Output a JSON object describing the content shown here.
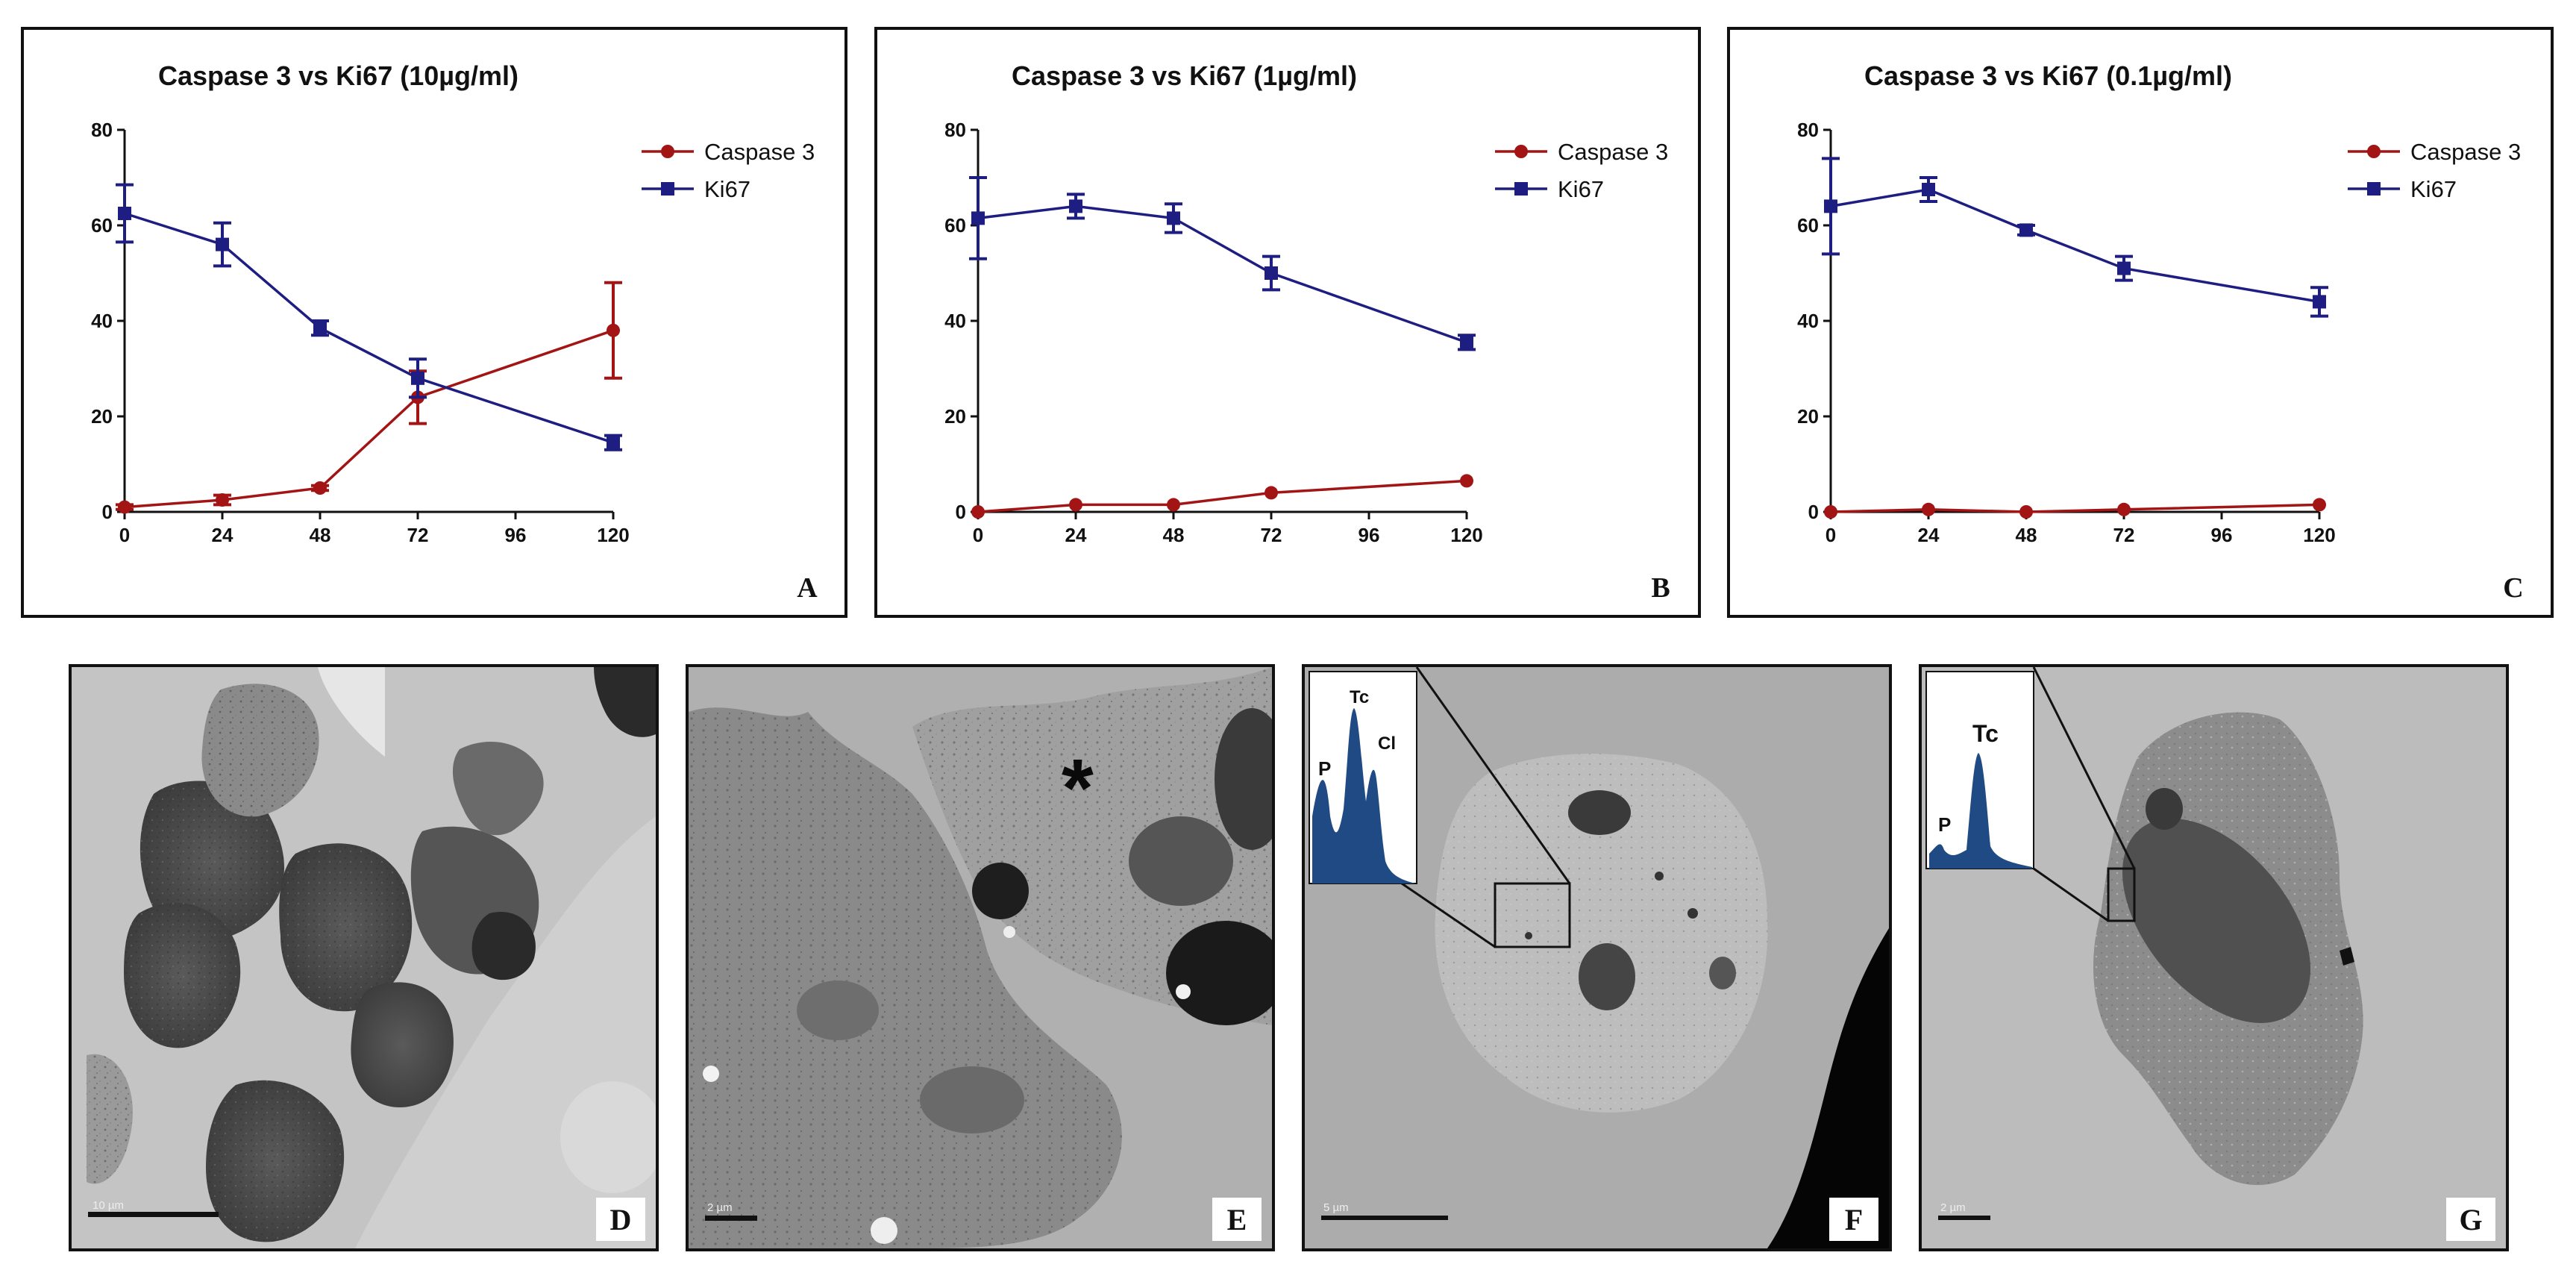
{
  "chart_data": [
    {
      "type": "line",
      "title": "Caspase 3 vs Ki67 (10µg/ml)",
      "panel_letter": "A",
      "x": [
        0,
        24,
        48,
        72,
        120
      ],
      "xlim": [
        0,
        120
      ],
      "ylim": [
        0,
        80
      ],
      "xticks": [
        "0",
        "24",
        "48",
        "72",
        "96",
        "120"
      ],
      "yticks": [
        "0",
        "20",
        "40",
        "60",
        "80"
      ],
      "legend_position": "top-right",
      "series": [
        {
          "name": "Caspase 3",
          "marker": "circle",
          "color": "#a31515",
          "values": [
            1,
            2.5,
            5,
            24,
            38
          ],
          "errors": [
            0.5,
            1,
            0.5,
            5.5,
            10
          ]
        },
        {
          "name": "Ki67",
          "marker": "square",
          "color": "#1e1e82",
          "values": [
            62.5,
            56,
            38.5,
            28,
            14.5
          ],
          "errors": [
            6,
            4.5,
            1.5,
            4,
            1.5
          ]
        }
      ]
    },
    {
      "type": "line",
      "title": "Caspase 3 vs Ki67 (1µg/ml)",
      "panel_letter": "B",
      "x": [
        0,
        24,
        48,
        72,
        120
      ],
      "xlim": [
        0,
        120
      ],
      "ylim": [
        0,
        80
      ],
      "xticks": [
        "0",
        "24",
        "48",
        "72",
        "96",
        "120"
      ],
      "yticks": [
        "0",
        "20",
        "40",
        "60",
        "80"
      ],
      "legend_position": "top-right",
      "series": [
        {
          "name": "Caspase 3",
          "marker": "circle",
          "color": "#a31515",
          "values": [
            0,
            1.5,
            1.5,
            4,
            6.5
          ],
          "errors": [
            0,
            0,
            0,
            0,
            0
          ]
        },
        {
          "name": "Ki67",
          "marker": "square",
          "color": "#1e1e82",
          "values": [
            61.5,
            64,
            61.5,
            50,
            35.5
          ],
          "errors": [
            8.5,
            2.5,
            3,
            3.5,
            1.5
          ]
        }
      ]
    },
    {
      "type": "line",
      "title": "Caspase 3 vs Ki67 (0.1µg/ml)",
      "panel_letter": "C",
      "x": [
        0,
        24,
        48,
        72,
        120
      ],
      "xlim": [
        0,
        120
      ],
      "ylim": [
        0,
        80
      ],
      "xticks": [
        "0",
        "24",
        "48",
        "72",
        "96",
        "120"
      ],
      "yticks": [
        "0",
        "20",
        "40",
        "60",
        "80"
      ],
      "legend_position": "top-right",
      "series": [
        {
          "name": "Caspase 3",
          "marker": "circle",
          "color": "#a31515",
          "values": [
            0,
            0.5,
            0,
            0.5,
            1.5
          ],
          "errors": [
            0,
            0,
            0,
            0,
            0
          ]
        },
        {
          "name": "Ki67",
          "marker": "square",
          "color": "#1e1e82",
          "values": [
            64,
            67.5,
            59,
            51,
            44
          ],
          "errors": [
            10,
            2.5,
            1,
            2.5,
            3
          ]
        }
      ]
    }
  ],
  "micrographs": [
    {
      "letter": "D",
      "scale_label": "10 µm"
    },
    {
      "letter": "E",
      "scale_label": "2 µm",
      "marker_symbol": "*"
    },
    {
      "letter": "F",
      "scale_label": "5 µm",
      "inset_labels": [
        "P",
        "Tc",
        "Cl"
      ]
    },
    {
      "letter": "G",
      "scale_label": "2 µm",
      "inset_labels": [
        "P",
        "Tc"
      ]
    }
  ]
}
